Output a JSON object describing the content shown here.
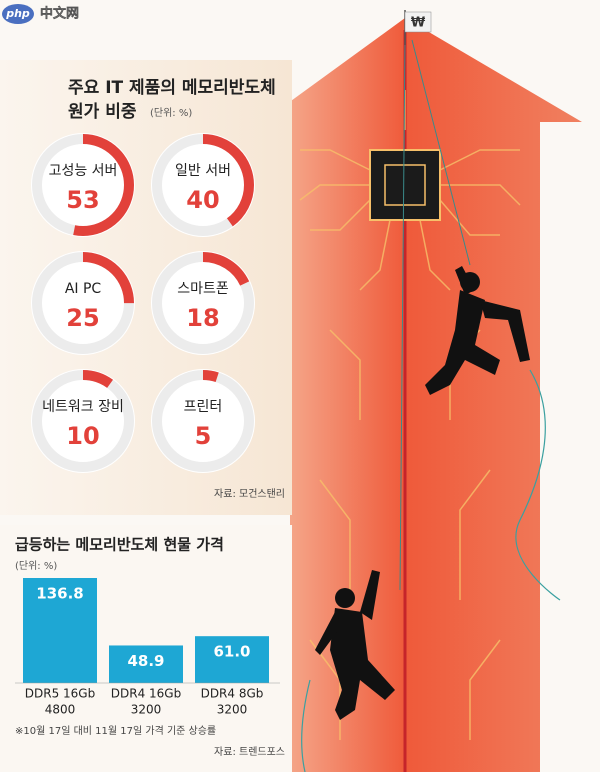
{
  "watermark": {
    "logo": "php",
    "text": "中文网"
  },
  "flag_symbol": "₩",
  "chart_data": [
    {
      "type": "donut",
      "title": [
        "주요 IT 제품의 메모리반도체",
        "원가 비중"
      ],
      "unit": "(단위: %)",
      "categories": [
        "고성능 서버",
        "일반 서버",
        "AI PC",
        "스마트폰",
        "네트워크 장비",
        "프린터"
      ],
      "values": [
        53,
        40,
        25,
        18,
        10,
        5
      ],
      "color": "#e2413a",
      "track_color": "#ececec",
      "source": "자료: 모건스탠리"
    },
    {
      "type": "bar",
      "title": "급등하는 메모리반도체 현물 가격",
      "unit": "(단위: %)",
      "categories": [
        [
          "DDR5 16Gb",
          "4800"
        ],
        [
          "DDR4 16Gb",
          "3200"
        ],
        [
          "DDR4 8Gb",
          "3200"
        ]
      ],
      "values": [
        136.8,
        48.9,
        61.0
      ],
      "value_labels": [
        "136.8",
        "48.9",
        "61.0"
      ],
      "color": "#1ea7d4",
      "note": "※10월 17일 대비 11월 17일 가격 기준 상승률",
      "source": "자료: 트렌드포스"
    }
  ]
}
